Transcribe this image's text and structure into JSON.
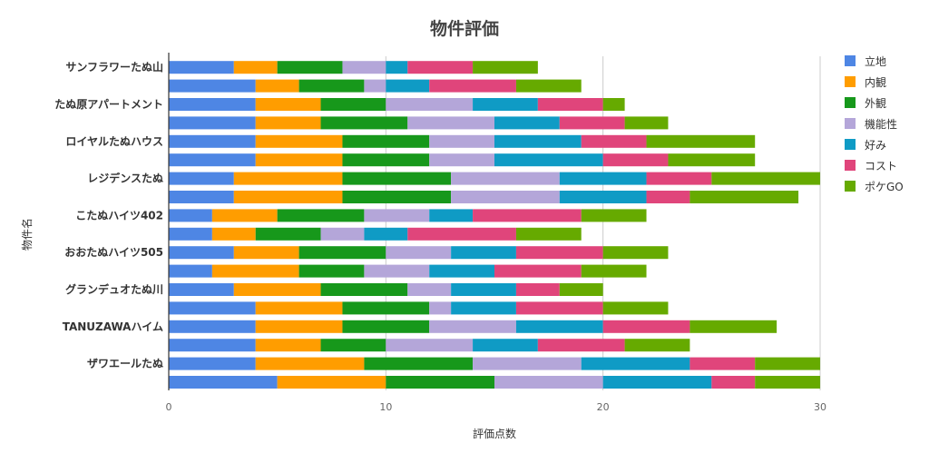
{
  "chart_data": {
    "type": "bar",
    "orientation": "horizontal",
    "stacked": true,
    "title": "物件評価",
    "xlabel": "評価点数",
    "ylabel": "物件名",
    "xlim": [
      0,
      30
    ],
    "xticks": [
      0,
      10,
      20,
      30
    ],
    "grid": true,
    "legend_position": "right",
    "categories": [
      "サンフラワーたぬ山",
      "",
      "たぬ原アパートメント",
      "",
      "ロイヤルたぬハウス",
      "",
      "レジデンスたぬ",
      "",
      "こたぬハイツ402",
      "",
      "おおたぬハイツ505",
      "",
      "グランデュオたぬ川",
      "",
      "TANUZAWAハイム",
      "",
      "ザワエールたぬ",
      ""
    ],
    "series": [
      {
        "name": "立地",
        "color": "#4e86e4",
        "values": [
          3,
          4,
          4,
          4,
          4,
          4,
          3,
          3,
          2,
          2,
          3,
          2,
          3,
          4,
          4,
          4,
          4,
          5
        ]
      },
      {
        "name": "内観",
        "color": "#ff9d00",
        "values": [
          2,
          2,
          3,
          3,
          4,
          4,
          5,
          5,
          3,
          2,
          3,
          4,
          4,
          4,
          4,
          3,
          5,
          5
        ]
      },
      {
        "name": "外観",
        "color": "#17981b",
        "values": [
          3,
          3,
          3,
          4,
          4,
          4,
          5,
          5,
          4,
          3,
          4,
          3,
          4,
          4,
          4,
          3,
          5,
          5
        ]
      },
      {
        "name": "機能性",
        "color": "#b4a6d9",
        "values": [
          2,
          1,
          4,
          4,
          3,
          3,
          5,
          5,
          3,
          2,
          3,
          3,
          2,
          1,
          4,
          4,
          5,
          5
        ]
      },
      {
        "name": "好み",
        "color": "#0f9bc5",
        "values": [
          1,
          2,
          3,
          3,
          4,
          5,
          4,
          4,
          2,
          2,
          3,
          3,
          3,
          3,
          4,
          3,
          5,
          5
        ]
      },
      {
        "name": "コスト",
        "color": "#e0457b",
        "values": [
          3,
          4,
          3,
          3,
          3,
          3,
          3,
          2,
          5,
          5,
          4,
          4,
          2,
          4,
          4,
          4,
          3,
          2
        ]
      },
      {
        "name": "ポケGO",
        "color": "#66aa00",
        "values": [
          3,
          3,
          1,
          2,
          5,
          4,
          5,
          5,
          3,
          3,
          3,
          3,
          2,
          3,
          4,
          3,
          3,
          3
        ]
      }
    ]
  }
}
